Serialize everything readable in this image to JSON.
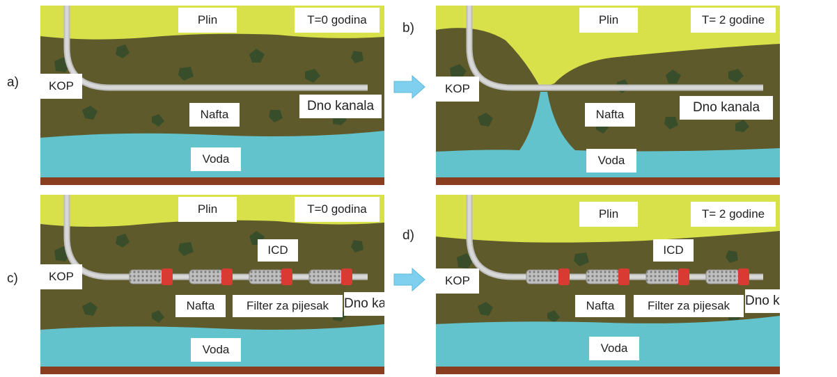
{
  "panels": [
    {
      "letter": "a)",
      "time": "T=0 godina",
      "gas": "Plin",
      "oil": "Nafta",
      "water": "Voda",
      "kop": "KOP",
      "toe": "Dno kanala"
    },
    {
      "letter": "b)",
      "time": "T= 2 godine",
      "gas": "Plin",
      "oil": "Nafta",
      "water": "Voda",
      "kop": "KOP",
      "toe": "Dno kanala"
    },
    {
      "letter": "c)",
      "time": "T=0 godina",
      "gas": "Plin",
      "oil": "Nafta",
      "water": "Voda",
      "kop": "KOP",
      "toe": "Dno kanala",
      "icd": "ICD",
      "filter": "Filter za pijesak"
    },
    {
      "letter": "d)",
      "time": "T= 2 godine",
      "gas": "Plin",
      "oil": "Nafta",
      "water": "Voda",
      "kop": "KOP",
      "toe": "Dno kanala",
      "icd": "ICD",
      "filter": "Filter za pijesak"
    }
  ],
  "colors": {
    "gas": "#d8e04a",
    "oil": "#5e5a2c",
    "water": "#62c3cc",
    "base": "#8a3d1f",
    "pipe": "#c9c9c9",
    "icd": "#d93a32",
    "arrow": "#7fd0ee"
  }
}
